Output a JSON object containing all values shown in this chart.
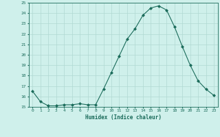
{
  "x": [
    0,
    1,
    2,
    3,
    4,
    5,
    6,
    7,
    8,
    9,
    10,
    11,
    12,
    13,
    14,
    15,
    16,
    17,
    18,
    19,
    20,
    21,
    22,
    23
  ],
  "y": [
    16.5,
    15.5,
    15.1,
    15.1,
    15.2,
    15.2,
    15.3,
    15.2,
    15.2,
    16.7,
    18.3,
    19.9,
    21.5,
    22.5,
    23.8,
    24.5,
    24.7,
    24.3,
    22.7,
    20.8,
    19.0,
    17.5,
    16.7,
    16.1
  ],
  "line_color": "#1a6b5a",
  "marker": "D",
  "marker_size": 2.0,
  "bg_color": "#cff0eb",
  "grid_color": "#b0d8d2",
  "xlabel": "Humidex (Indice chaleur)",
  "xlabel_color": "#1a6b5a",
  "tick_color": "#1a6b5a",
  "xlim": [
    -0.5,
    23.5
  ],
  "ylim": [
    15,
    25
  ],
  "yticks": [
    15,
    16,
    17,
    18,
    19,
    20,
    21,
    22,
    23,
    24,
    25
  ],
  "xticks": [
    0,
    1,
    2,
    3,
    4,
    5,
    6,
    7,
    8,
    9,
    10,
    11,
    12,
    13,
    14,
    15,
    16,
    17,
    18,
    19,
    20,
    21,
    22,
    23
  ],
  "xtick_labels": [
    "0",
    "1",
    "2",
    "3",
    "4",
    "5",
    "6",
    "7",
    "8",
    "9",
    "10",
    "11",
    "12",
    "13",
    "14",
    "15",
    "16",
    "17",
    "18",
    "19",
    "20",
    "21",
    "22",
    "23"
  ]
}
